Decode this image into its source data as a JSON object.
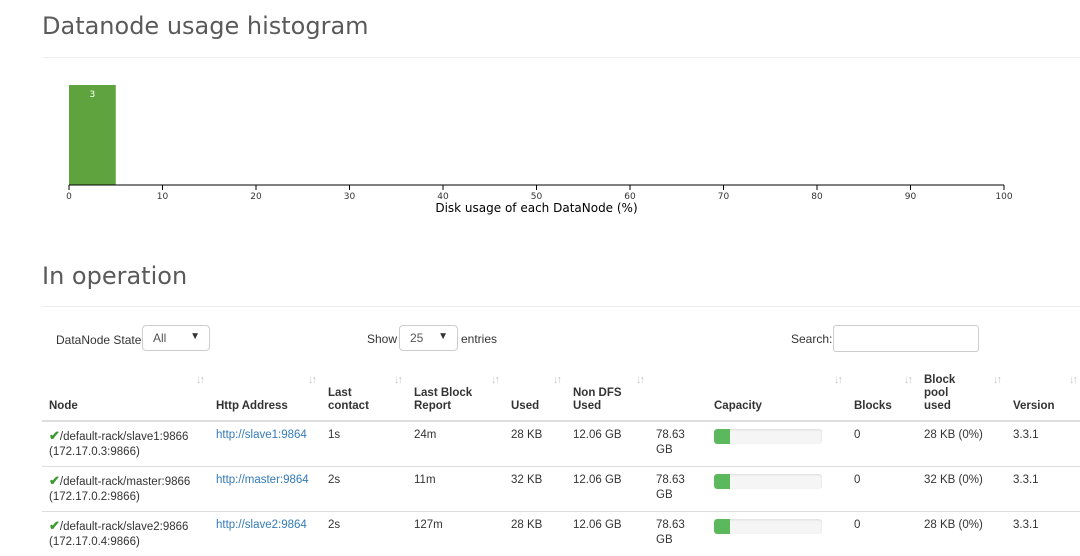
{
  "histogram": {
    "title": "Datanode usage histogram",
    "chart_data": {
      "type": "bar",
      "categories": [
        "0-5"
      ],
      "values": [
        3
      ],
      "xlabel": "Disk usage of each DataNode (%)",
      "x_ticks": [
        "0",
        "10",
        "20",
        "30",
        "40",
        "50",
        "60",
        "70",
        "80",
        "90",
        "100"
      ],
      "xlim": [
        0,
        100
      ],
      "bins": [
        {
          "start": 0,
          "end": 5,
          "count": 3
        }
      ],
      "bar_color": "#5fa33e",
      "grid": false
    }
  },
  "operation": {
    "title": "In operation",
    "state_label": "DataNode State",
    "state_value": "All",
    "show_label": "Show",
    "entries_value": "25",
    "entries_label": "entries",
    "search_label": "Search:",
    "columns": [
      "Node",
      "Http Address",
      "Last contact",
      "Last Block Report",
      "Used",
      "Non DFS Used",
      "Capacity",
      "Blocks",
      "Block pool used",
      "Version"
    ],
    "rows": [
      {
        "node": "/default-rack/slave1:9866",
        "ip": "(172.17.0.3:9866)",
        "http": "http://slave1:9864",
        "contact": "1s",
        "report": "24m",
        "used": "28 KB",
        "nondfs": "12.06 GB",
        "capacity": "78.63 GB",
        "usage_fraction": 0.15,
        "blocks": "0",
        "bpused": "28 KB (0%)",
        "version": "3.3.1"
      },
      {
        "node": "/default-rack/master:9866",
        "ip": "(172.17.0.2:9866)",
        "http": "http://master:9864",
        "contact": "2s",
        "report": "11m",
        "used": "32 KB",
        "nondfs": "12.06 GB",
        "capacity": "78.63 GB",
        "usage_fraction": 0.15,
        "blocks": "0",
        "bpused": "32 KB (0%)",
        "version": "3.3.1"
      },
      {
        "node": "/default-rack/slave2:9866",
        "ip": "(172.17.0.4:9866)",
        "http": "http://slave2:9864",
        "contact": "2s",
        "report": "127m",
        "used": "28 KB",
        "nondfs": "12.06 GB",
        "capacity": "78.63 GB",
        "usage_fraction": 0.15,
        "blocks": "0",
        "bpused": "28 KB (0%)",
        "version": "3.3.1"
      }
    ],
    "colors": {
      "check": "#3c9a32",
      "link": "#337ab7",
      "bar_fill": "#5cb85c"
    }
  }
}
